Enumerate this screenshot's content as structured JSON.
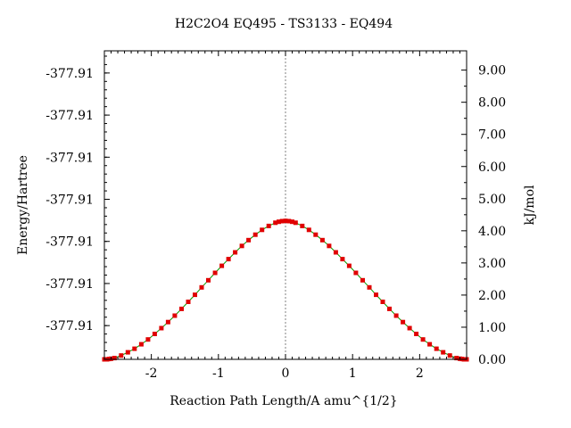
{
  "chart_data": {
    "type": "line",
    "title": "H2C2O4    EQ495 - TS3133 - EQ494",
    "xlabel": "Reaction Path Length/A amu^{1/2}",
    "ylabel_left": "Energy/Hartree",
    "ylabel_right": "kJ/mol",
    "xlim": [
      -2.7,
      2.7
    ],
    "ylim_right": [
      0.0,
      9.6
    ],
    "x_ticks": [
      -2,
      -1,
      0,
      1,
      2
    ],
    "x_tick_labels": [
      "-2",
      "-1",
      "0",
      "1",
      "2"
    ],
    "right_ticks": [
      0,
      1,
      2,
      3,
      4,
      5,
      6,
      7,
      8,
      9
    ],
    "right_tick_labels": [
      "0.00",
      "1.00",
      "2.00",
      "3.00",
      "4.00",
      "5.00",
      "6.00",
      "7.00",
      "8.00",
      "9.00"
    ],
    "left_ticks_kjmol": [
      1.05,
      2.36,
      3.67,
      4.98,
      6.29,
      7.6,
      8.91
    ],
    "left_tick_labels": [
      "-377.91",
      "-377.91",
      "-377.91",
      "-377.91",
      "-377.91",
      "-377.91",
      "-377.91"
    ],
    "ts_x": 0.0,
    "grid": false,
    "colors": {
      "line": "#00a000",
      "marker": "#e00000",
      "ts_line": "#808080",
      "axis": "#000000"
    },
    "series": [
      {
        "x": [
          -2.7,
          -2.66,
          -2.63,
          -2.6,
          -2.55,
          -2.45,
          -2.35,
          -2.25,
          -2.15,
          -2.05,
          -1.95,
          -1.85,
          -1.75,
          -1.65,
          -1.55,
          -1.45,
          -1.35,
          -1.25,
          -1.15,
          -1.05,
          -0.95,
          -0.85,
          -0.75,
          -0.65,
          -0.55,
          -0.45,
          -0.35,
          -0.25,
          -0.15,
          -0.1,
          -0.05,
          0.0,
          0.05,
          0.1,
          0.15,
          0.25,
          0.35,
          0.45,
          0.55,
          0.65,
          0.75,
          0.85,
          0.95,
          1.05,
          1.15,
          1.25,
          1.35,
          1.45,
          1.55,
          1.65,
          1.75,
          1.85,
          1.95,
          2.05,
          2.15,
          2.25,
          2.35,
          2.45,
          2.55,
          2.6,
          2.63,
          2.66,
          2.7
        ],
        "y": [
          0.0,
          0.0,
          0.01,
          0.02,
          0.04,
          0.12,
          0.22,
          0.33,
          0.47,
          0.62,
          0.79,
          0.97,
          1.16,
          1.36,
          1.57,
          1.79,
          2.01,
          2.24,
          2.46,
          2.69,
          2.91,
          3.12,
          3.33,
          3.53,
          3.71,
          3.88,
          4.03,
          4.15,
          4.25,
          4.28,
          4.3,
          4.31,
          4.3,
          4.28,
          4.25,
          4.15,
          4.03,
          3.88,
          3.71,
          3.53,
          3.33,
          3.12,
          2.91,
          2.69,
          2.46,
          2.24,
          2.01,
          1.79,
          1.57,
          1.36,
          1.16,
          0.97,
          0.79,
          0.62,
          0.47,
          0.33,
          0.22,
          0.12,
          0.04,
          0.02,
          0.01,
          0.0,
          0.0
        ]
      }
    ]
  }
}
